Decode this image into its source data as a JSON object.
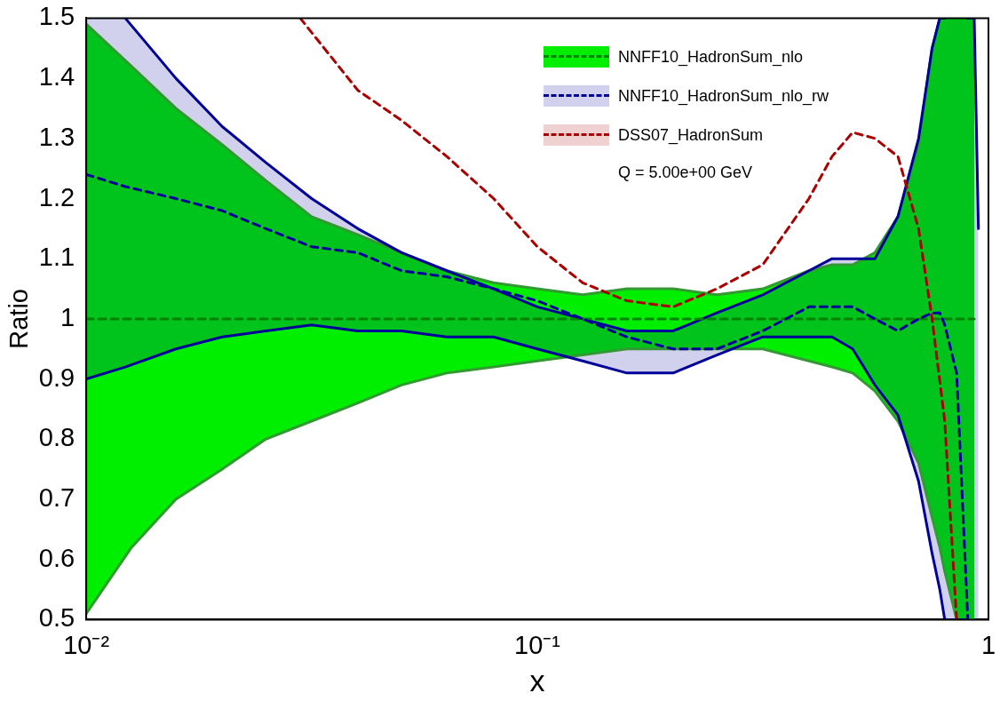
{
  "chart_data": {
    "type": "line",
    "xlabel": "x",
    "ylabel": "Ratio",
    "log": "x",
    "grid": false,
    "legend": "top right",
    "marker": "none",
    "line_style": "dashed",
    "xlim": [
      0.01,
      1
    ],
    "xticks": [
      {
        "value": 0.01,
        "label": "10⁻²"
      },
      {
        "value": 0.1,
        "label": "10⁻¹"
      },
      1
    ],
    "ylim": [
      0.5,
      1.5
    ],
    "yticks": [
      0.5,
      0.6,
      0.7,
      0.8,
      0.9,
      1,
      1.1,
      1.2,
      1.3,
      1.4,
      1.5
    ],
    "annotations": [
      "Q = 5.00e+00 GeV"
    ],
    "series": [
      {
        "name": "NNFF10_HadronSum_nlo",
        "color": "#008300",
        "x": [
          0.01,
          0.0126,
          0.0158,
          0.02,
          0.025,
          0.0316,
          0.04,
          0.05,
          0.063,
          0.08,
          0.1,
          0.126,
          0.158,
          0.2,
          0.25,
          0.316,
          0.4,
          0.45,
          0.5,
          0.56,
          0.63,
          0.7,
          0.75,
          0.78,
          0.8,
          0.85,
          0.9,
          0.93
        ],
        "values": [
          1,
          1,
          1,
          1,
          1,
          1,
          1,
          1,
          1,
          1,
          1,
          1,
          1,
          1,
          1,
          1,
          1,
          1,
          1,
          1,
          1,
          1,
          1,
          1,
          1,
          1,
          1,
          1
        ],
        "upper": [
          1.49,
          1.42,
          1.35,
          1.29,
          1.23,
          1.17,
          1.14,
          1.11,
          1.08,
          1.06,
          1.05,
          1.04,
          1.05,
          1.05,
          1.04,
          1.05,
          1.08,
          1.09,
          1.09,
          1.11,
          1.17,
          1.29,
          1.45,
          1.5,
          1.5,
          1.5,
          1.5,
          1.5
        ],
        "lower": [
          0.51,
          0.62,
          0.7,
          0.75,
          0.8,
          0.83,
          0.86,
          0.89,
          0.91,
          0.92,
          0.93,
          0.94,
          0.95,
          0.95,
          0.95,
          0.95,
          0.93,
          0.92,
          0.91,
          0.88,
          0.83,
          0.76,
          0.67,
          0.62,
          0.58,
          0.5,
          0.5,
          0.5
        ]
      },
      {
        "name": "NNFF10_HadronSum_nlo_rw",
        "color": "#000099",
        "x": [
          0.01,
          0.0122,
          0.0158,
          0.02,
          0.025,
          0.0316,
          0.04,
          0.05,
          0.063,
          0.08,
          0.1,
          0.126,
          0.158,
          0.2,
          0.25,
          0.316,
          0.4,
          0.45,
          0.5,
          0.56,
          0.63,
          0.7,
          0.75,
          0.78,
          0.8,
          0.85,
          0.9,
          0.93,
          0.95
        ],
        "values": [
          1.24,
          1.22,
          1.2,
          1.18,
          1.15,
          1.12,
          1.11,
          1.08,
          1.07,
          1.05,
          1.03,
          1,
          0.97,
          0.95,
          0.95,
          0.98,
          1.02,
          1.02,
          1.02,
          1,
          0.98,
          1,
          1.01,
          1.01,
          0.99,
          0.91,
          0.5,
          null,
          null
        ],
        "upper": [
          1.5,
          1.5,
          1.4,
          1.32,
          1.26,
          1.2,
          1.15,
          1.11,
          1.08,
          1.05,
          1.02,
          1,
          0.98,
          0.98,
          1.01,
          1.04,
          1.08,
          1.1,
          1.1,
          1.1,
          1.17,
          1.3,
          1.45,
          1.5,
          1.5,
          1.5,
          1.5,
          1.5,
          1.15
        ],
        "lower": [
          0.9,
          0.92,
          0.95,
          0.97,
          0.98,
          0.99,
          0.98,
          0.98,
          0.97,
          0.97,
          0.95,
          0.93,
          0.91,
          0.91,
          0.94,
          0.97,
          0.97,
          0.97,
          0.95,
          0.89,
          0.84,
          0.73,
          0.61,
          0.55,
          0.5,
          0.5,
          0.5,
          0.5,
          0.5
        ]
      },
      {
        "color": "#339933",
        "line_style": "solid",
        "x": [
          0.01,
          0.0126,
          0.0158,
          0.02,
          0.025,
          0.0316,
          0.04,
          0.05,
          0.063,
          0.08,
          0.1,
          0.126,
          0.158,
          0.2,
          0.25,
          0.316,
          0.4,
          0.45,
          0.5,
          0.56,
          0.63,
          0.7,
          0.75,
          0.78,
          0.8
        ],
        "values": [
          1.49,
          1.42,
          1.35,
          1.29,
          1.23,
          1.17,
          1.14,
          1.11,
          1.08,
          1.06,
          1.05,
          1.04,
          1.05,
          1.05,
          1.04,
          1.05,
          1.08,
          1.09,
          1.09,
          1.11,
          1.17,
          1.29,
          1.45,
          1.5,
          1.5
        ]
      },
      {
        "color": "#339933",
        "line_style": "solid",
        "x": [
          0.01,
          0.0126,
          0.0158,
          0.02,
          0.025,
          0.0316,
          0.04,
          0.05,
          0.063,
          0.08,
          0.1,
          0.126,
          0.158,
          0.2,
          0.25,
          0.316,
          0.4,
          0.45,
          0.5,
          0.56,
          0.63,
          0.7,
          0.75,
          0.78,
          0.8,
          0.85,
          0.9
        ],
        "values": [
          0.51,
          0.62,
          0.7,
          0.75,
          0.8,
          0.83,
          0.86,
          0.89,
          0.91,
          0.92,
          0.93,
          0.94,
          0.95,
          0.95,
          0.95,
          0.95,
          0.93,
          0.92,
          0.91,
          0.88,
          0.83,
          0.76,
          0.67,
          0.62,
          0.58,
          0.5,
          0.5
        ]
      },
      {
        "color": "#000099",
        "line_style": "solid",
        "x": [
          0.0122,
          0.0158,
          0.02,
          0.025,
          0.0316,
          0.04,
          0.05,
          0.063,
          0.08,
          0.1,
          0.126,
          0.158,
          0.2,
          0.25,
          0.316,
          0.4,
          0.45,
          0.5,
          0.56,
          0.63,
          0.7,
          0.75,
          0.78,
          0.8,
          0.85,
          0.9,
          0.93,
          0.95
        ],
        "values": [
          1.5,
          1.4,
          1.32,
          1.26,
          1.2,
          1.15,
          1.11,
          1.08,
          1.05,
          1.02,
          1,
          0.98,
          0.98,
          1.01,
          1.04,
          1.08,
          1.1,
          1.1,
          1.1,
          1.17,
          1.3,
          1.45,
          1.5,
          1.5,
          null,
          1.5,
          1.5,
          1.15
        ]
      },
      {
        "color": "#000099",
        "line_style": "solid",
        "x": [
          0.01,
          0.0122,
          0.0158,
          0.02,
          0.025,
          0.0316,
          0.04,
          0.05,
          0.063,
          0.08,
          0.1,
          0.126,
          0.158,
          0.2,
          0.25,
          0.316,
          0.4,
          0.45,
          0.5,
          0.56,
          0.63,
          0.7,
          0.75,
          0.78,
          0.8,
          0.85,
          0.9
        ],
        "values": [
          0.9,
          0.92,
          0.95,
          0.97,
          0.98,
          0.99,
          0.98,
          0.98,
          0.97,
          0.97,
          0.95,
          0.93,
          0.91,
          0.91,
          0.94,
          0.97,
          0.97,
          0.97,
          0.95,
          0.89,
          0.84,
          0.73,
          0.61,
          0.55,
          0.5,
          0.5,
          0.5
        ]
      },
      {
        "name": "DSS07_HadronSum",
        "color": "#aa0000",
        "x": [
          0.0298,
          0.04,
          0.05,
          0.063,
          0.08,
          0.1,
          0.126,
          0.158,
          0.2,
          0.25,
          0.316,
          0.4,
          0.45,
          0.5,
          0.56,
          0.63,
          0.7,
          0.75,
          0.8,
          0.85
        ],
        "values": [
          1.5,
          1.38,
          1.33,
          1.27,
          1.2,
          1.12,
          1.06,
          1.03,
          1.02,
          1.05,
          1.09,
          1.2,
          1.27,
          1.31,
          1.3,
          1.27,
          1.15,
          1,
          0.83,
          0.5
        ]
      }
    ]
  }
}
